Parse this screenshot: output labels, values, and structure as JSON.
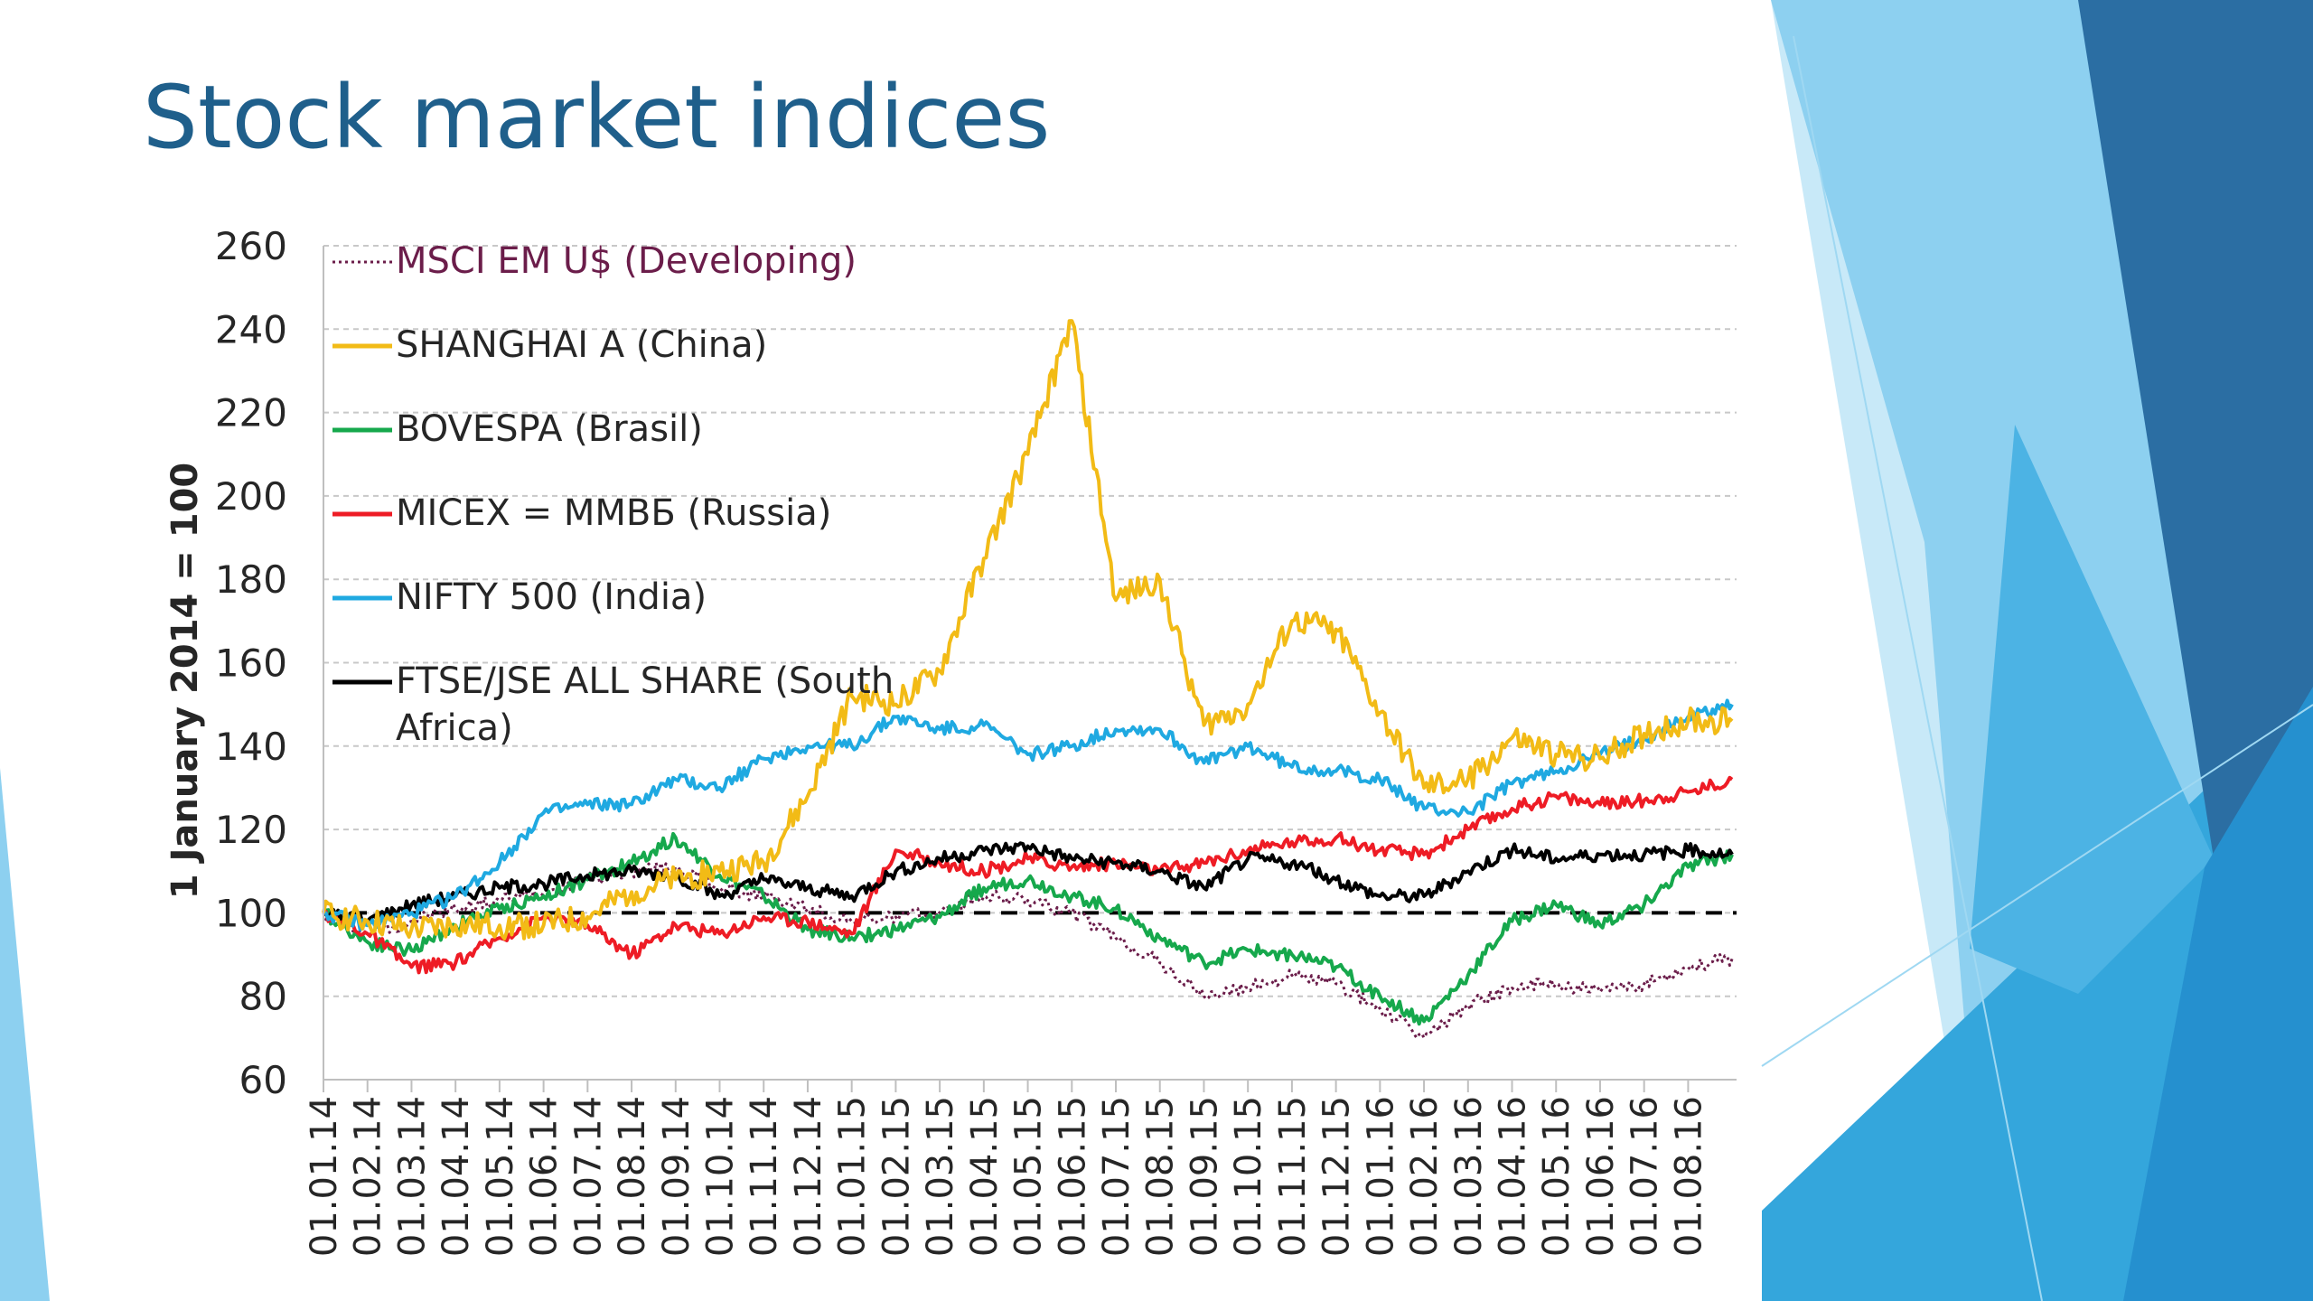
{
  "slide": {
    "title": "Stock market indices"
  },
  "colors": {
    "title": "#1f5f8b",
    "decor_dark": "#2b6ea3",
    "decor_mid": "#34a6dc",
    "decor_light": "#8dd0f0",
    "decor_pale": "#c8e9f8",
    "grid": "#bfbfbf",
    "axis_text": "#262626"
  },
  "chart_data": {
    "type": "line",
    "title": "",
    "xlabel": "",
    "ylabel": "1 January 2014 = 100",
    "ylim": [
      60,
      260
    ],
    "yticks": [
      60,
      80,
      100,
      120,
      140,
      160,
      180,
      200,
      220,
      240,
      260
    ],
    "grid": true,
    "legend_position": "top-left",
    "x_tick_labels": [
      "01.01.14",
      "01.02.14",
      "01.03.14",
      "01.04.14",
      "01.05.14",
      "01.06.14",
      "01.07.14",
      "01.08.14",
      "01.09.14",
      "01.10.14",
      "01.11.14",
      "01.12.14",
      "01.01.15",
      "01.02.15",
      "01.03.15",
      "01.04.15",
      "01.05.15",
      "01.06.15",
      "01.07.15",
      "01.08.15",
      "01.09.15",
      "01.10.15",
      "01.11.15",
      "01.12.15",
      "01.01.16",
      "01.02.16",
      "01.03.16",
      "01.04.16",
      "01.05.16",
      "01.06.16",
      "01.07.16",
      "01.08.16"
    ],
    "x_end": "01.09.16",
    "reference_line": {
      "value": 100,
      "style": "dashed",
      "color": "#000000"
    },
    "series": [
      {
        "name": "MSCI EM U$ (Developing)",
        "color": "#6b1d4a",
        "style": "dotted",
        "points": [
          [
            "01.01.14",
            100
          ],
          [
            "01.02.14",
            95
          ],
          [
            "01.03.14",
            98
          ],
          [
            "01.04.14",
            101
          ],
          [
            "01.05.14",
            103
          ],
          [
            "01.06.14",
            105
          ],
          [
            "01.07.14",
            108
          ],
          [
            "01.08.14",
            110
          ],
          [
            "01.09.14",
            111
          ],
          [
            "01.10.14",
            106
          ],
          [
            "01.11.14",
            104
          ],
          [
            "01.12.14",
            101
          ],
          [
            "01.01.15",
            98
          ],
          [
            "01.02.15",
            99
          ],
          [
            "01.03.15",
            100
          ],
          [
            "01.04.15",
            104
          ],
          [
            "01.05.15",
            103
          ],
          [
            "01.06.15",
            100
          ],
          [
            "01.07.15",
            94
          ],
          [
            "01.08.15",
            88
          ],
          [
            "01.09.15",
            80
          ],
          [
            "01.10.15",
            82
          ],
          [
            "01.11.15",
            85
          ],
          [
            "01.12.15",
            83
          ],
          [
            "01.01.16",
            77
          ],
          [
            "01.02.16",
            70
          ],
          [
            "01.03.16",
            78
          ],
          [
            "01.04.16",
            82
          ],
          [
            "01.05.16",
            83
          ],
          [
            "01.06.16",
            81
          ],
          [
            "01.07.16",
            83
          ],
          [
            "01.08.16",
            87
          ],
          [
            "01.09.16",
            89
          ]
        ]
      },
      {
        "name": "SHANGHAI A (China)",
        "color": "#f2bb16",
        "style": "solid",
        "points": [
          [
            "01.01.14",
            100
          ],
          [
            "01.02.14",
            98
          ],
          [
            "01.03.14",
            96
          ],
          [
            "01.04.14",
            97
          ],
          [
            "01.05.14",
            97
          ],
          [
            "01.06.14",
            97
          ],
          [
            "01.07.14",
            99
          ],
          [
            "01.08.14",
            105
          ],
          [
            "01.09.14",
            108
          ],
          [
            "01.10.14",
            110
          ],
          [
            "01.11.14",
            112
          ],
          [
            "01.12.14",
            128
          ],
          [
            "01.01.15",
            152
          ],
          [
            "01.02.15",
            150
          ],
          [
            "01.03.15",
            158
          ],
          [
            "01.04.15",
            185
          ],
          [
            "01.05.15",
            210
          ],
          [
            "01.06.15",
            242
          ],
          [
            "01.07.15",
            175
          ],
          [
            "01.08.15",
            180
          ],
          [
            "01.09.15",
            145
          ],
          [
            "01.10.15",
            150
          ],
          [
            "01.11.15",
            170
          ],
          [
            "01.12.15",
            168
          ],
          [
            "01.01.16",
            148
          ],
          [
            "01.02.16",
            130
          ],
          [
            "01.03.16",
            132
          ],
          [
            "01.04.16",
            142
          ],
          [
            "01.05.16",
            138
          ],
          [
            "01.06.16",
            137
          ],
          [
            "01.07.16",
            143
          ],
          [
            "01.08.16",
            146
          ],
          [
            "01.09.16",
            146
          ]
        ]
      },
      {
        "name": "BOVESPA (Brasil)",
        "color": "#16a84c",
        "style": "solid",
        "points": [
          [
            "01.01.14",
            100
          ],
          [
            "01.02.14",
            93
          ],
          [
            "01.03.14",
            91
          ],
          [
            "01.04.14",
            97
          ],
          [
            "01.05.14",
            101
          ],
          [
            "01.06.14",
            104
          ],
          [
            "01.07.14",
            108
          ],
          [
            "01.08.14",
            112
          ],
          [
            "01.09.14",
            118
          ],
          [
            "01.10.14",
            109
          ],
          [
            "01.11.14",
            104
          ],
          [
            "01.12.14",
            96
          ],
          [
            "01.01.15",
            94
          ],
          [
            "01.02.15",
            96
          ],
          [
            "01.03.15",
            99
          ],
          [
            "01.04.15",
            106
          ],
          [
            "01.05.15",
            108
          ],
          [
            "01.06.15",
            104
          ],
          [
            "01.07.15",
            101
          ],
          [
            "01.08.15",
            94
          ],
          [
            "01.09.15",
            88
          ],
          [
            "01.10.15",
            91
          ],
          [
            "01.11.15",
            90
          ],
          [
            "01.12.15",
            87
          ],
          [
            "01.01.16",
            80
          ],
          [
            "01.02.16",
            74
          ],
          [
            "01.03.16",
            85
          ],
          [
            "01.04.16",
            98
          ],
          [
            "01.05.16",
            102
          ],
          [
            "01.06.16",
            97
          ],
          [
            "01.07.16",
            102
          ],
          [
            "01.08.16",
            111
          ],
          [
            "01.09.16",
            114
          ]
        ]
      },
      {
        "name": "MICEX = ММВБ (Russia)",
        "color": "#ee1c25",
        "style": "solid",
        "points": [
          [
            "01.01.14",
            100
          ],
          [
            "01.02.14",
            95
          ],
          [
            "01.03.14",
            87
          ],
          [
            "01.04.14",
            88
          ],
          [
            "01.05.14",
            94
          ],
          [
            "01.06.14",
            99
          ],
          [
            "01.07.14",
            97
          ],
          [
            "01.08.14",
            90
          ],
          [
            "01.09.14",
            97
          ],
          [
            "01.10.14",
            95
          ],
          [
            "01.11.14",
            99
          ],
          [
            "01.12.14",
            98
          ],
          [
            "01.01.15",
            95
          ],
          [
            "01.02.15",
            115
          ],
          [
            "01.03.15",
            112
          ],
          [
            "01.04.15",
            110
          ],
          [
            "01.05.15",
            113
          ],
          [
            "01.06.15",
            111
          ],
          [
            "01.07.15",
            112
          ],
          [
            "01.08.15",
            110
          ],
          [
            "01.09.15",
            112
          ],
          [
            "01.10.15",
            115
          ],
          [
            "01.11.15",
            117
          ],
          [
            "01.12.15",
            118
          ],
          [
            "01.01.16",
            115
          ],
          [
            "01.02.16",
            114
          ],
          [
            "01.03.16",
            120
          ],
          [
            "01.04.16",
            125
          ],
          [
            "01.05.16",
            128
          ],
          [
            "01.06.16",
            126
          ],
          [
            "01.07.16",
            127
          ],
          [
            "01.08.16",
            129
          ],
          [
            "01.09.16",
            132
          ]
        ]
      },
      {
        "name": "NIFTY 500 (India)",
        "color": "#1fa9e1",
        "style": "solid",
        "points": [
          [
            "01.01.14",
            100
          ],
          [
            "01.02.14",
            97
          ],
          [
            "01.03.14",
            100
          ],
          [
            "01.04.14",
            104
          ],
          [
            "01.05.14",
            112
          ],
          [
            "01.06.14",
            124
          ],
          [
            "01.07.14",
            126
          ],
          [
            "01.08.14",
            126
          ],
          [
            "01.09.14",
            132
          ],
          [
            "01.10.14",
            130
          ],
          [
            "01.11.14",
            137
          ],
          [
            "01.12.14",
            140
          ],
          [
            "01.01.15",
            140
          ],
          [
            "01.02.15",
            147
          ],
          [
            "01.03.15",
            144
          ],
          [
            "01.04.15",
            145
          ],
          [
            "01.05.15",
            138
          ],
          [
            "01.06.15",
            140
          ],
          [
            "01.07.15",
            144
          ],
          [
            "01.08.15",
            144
          ],
          [
            "01.09.15",
            136
          ],
          [
            "01.10.15",
            140
          ],
          [
            "01.11.15",
            135
          ],
          [
            "01.12.15",
            134
          ],
          [
            "01.01.16",
            132
          ],
          [
            "01.02.16",
            125
          ],
          [
            "01.03.16",
            124
          ],
          [
            "01.04.16",
            131
          ],
          [
            "01.05.16",
            134
          ],
          [
            "01.06.16",
            138
          ],
          [
            "01.07.16",
            142
          ],
          [
            "01.08.16",
            147
          ],
          [
            "01.09.16",
            150
          ]
        ]
      },
      {
        "name": "FTSE/JSE ALL SHARE (South Africa)",
        "color": "#000000",
        "style": "solid",
        "points": [
          [
            "01.01.14",
            100
          ],
          [
            "01.02.14",
            98
          ],
          [
            "01.03.14",
            102
          ],
          [
            "01.04.14",
            104
          ],
          [
            "01.05.14",
            106
          ],
          [
            "01.06.14",
            107
          ],
          [
            "01.07.14",
            109
          ],
          [
            "01.08.14",
            110
          ],
          [
            "01.09.14",
            109
          ],
          [
            "01.10.14",
            104
          ],
          [
            "01.11.14",
            108
          ],
          [
            "01.12.14",
            106
          ],
          [
            "01.01.15",
            104
          ],
          [
            "01.02.15",
            110
          ],
          [
            "01.03.15",
            113
          ],
          [
            "01.04.15",
            115
          ],
          [
            "01.05.15",
            116
          ],
          [
            "01.06.15",
            113
          ],
          [
            "01.07.15",
            112
          ],
          [
            "01.08.15",
            110
          ],
          [
            "01.09.15",
            106
          ],
          [
            "01.10.15",
            113
          ],
          [
            "01.11.15",
            112
          ],
          [
            "01.12.15",
            108
          ],
          [
            "01.01.16",
            104
          ],
          [
            "01.02.16",
            104
          ],
          [
            "01.03.16",
            110
          ],
          [
            "01.04.16",
            115
          ],
          [
            "01.05.16",
            113
          ],
          [
            "01.06.16",
            114
          ],
          [
            "01.07.16",
            114
          ],
          [
            "01.08.16",
            115
          ],
          [
            "01.09.16",
            114
          ]
        ]
      }
    ]
  }
}
